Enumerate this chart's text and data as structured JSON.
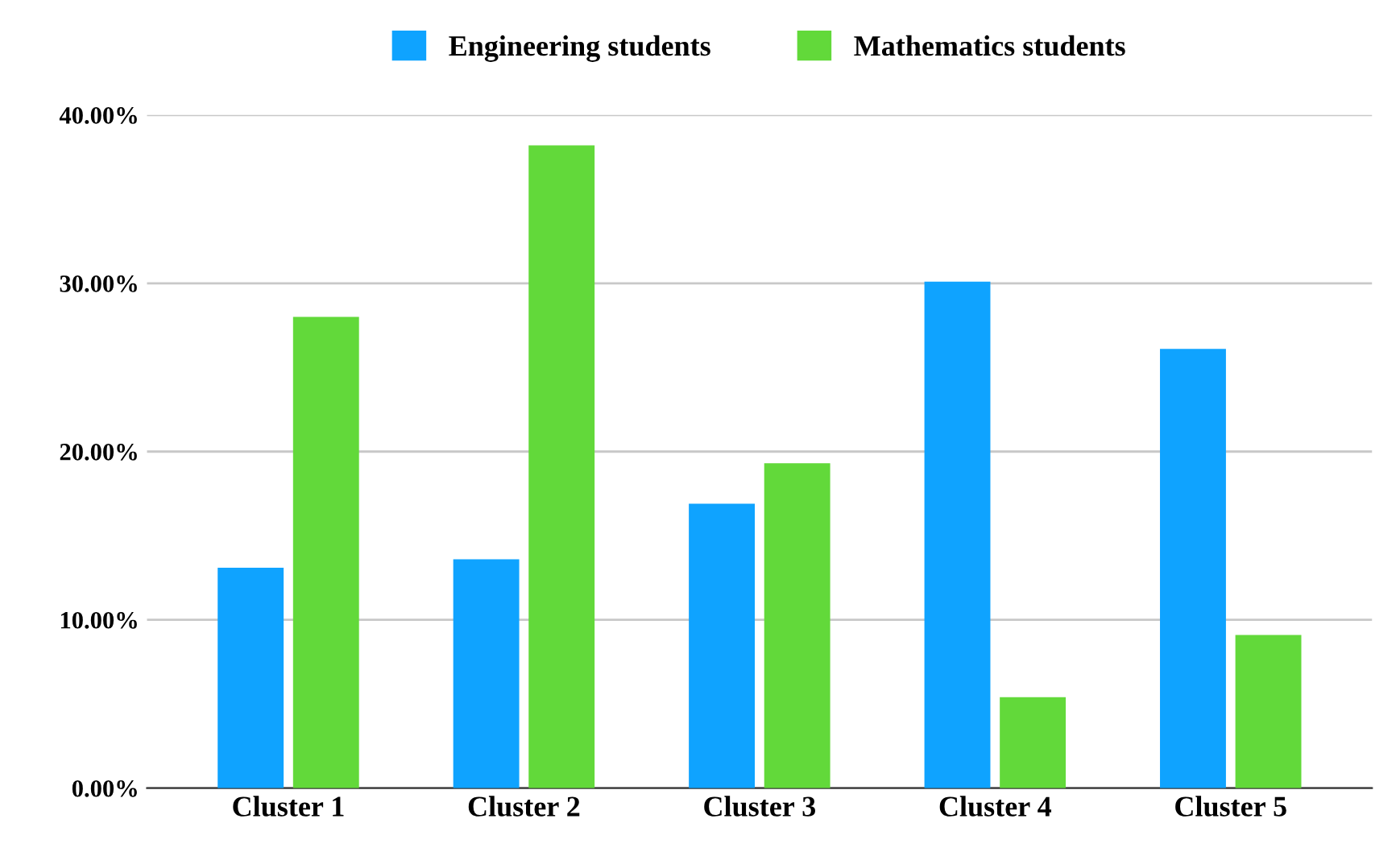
{
  "chart_data": {
    "type": "bar",
    "categories": [
      "Cluster 1",
      "Cluster 2",
      "Cluster 3",
      "Cluster 4",
      "Cluster 5"
    ],
    "series": [
      {
        "name": "Engineering students",
        "color": "#0fa3ff",
        "values": [
          13.1,
          13.6,
          16.9,
          30.1,
          26.1
        ]
      },
      {
        "name": "Mathematics students",
        "color": "#62d93a",
        "values": [
          28.0,
          38.2,
          19.3,
          5.4,
          9.1
        ]
      }
    ],
    "ylim": [
      0,
      40
    ],
    "yticks": [
      {
        "value": 0,
        "label": "0.00%"
      },
      {
        "value": 10,
        "label": "10.00%"
      },
      {
        "value": 20,
        "label": "20.00%"
      },
      {
        "value": 30,
        "label": "30.00%"
      },
      {
        "value": 40,
        "label": "40.00%"
      }
    ],
    "grid": "y",
    "legend": "top"
  }
}
